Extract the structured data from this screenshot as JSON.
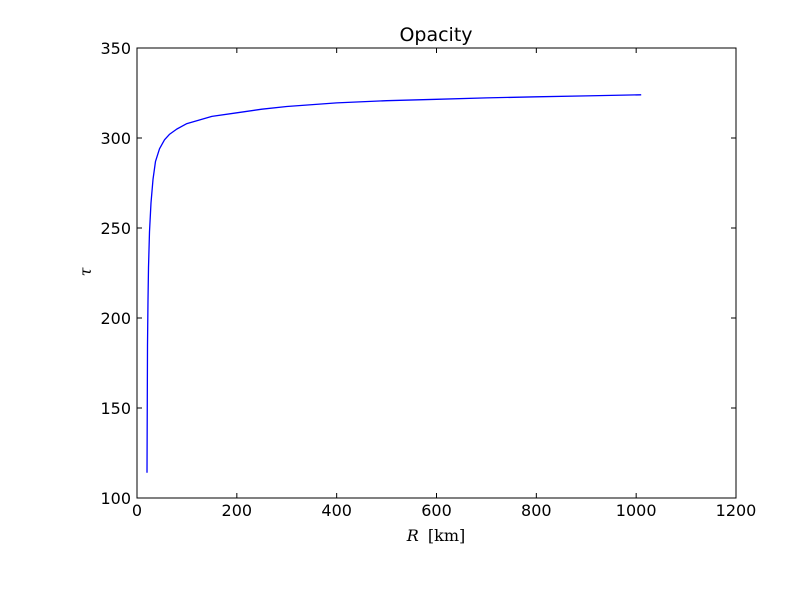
{
  "chart_data": {
    "type": "line",
    "title": "Opacity",
    "xlabel_var": "R",
    "xlabel_unit": "[km]",
    "ylabel": "τ",
    "xlim": [
      0,
      1200
    ],
    "ylim": [
      100,
      350
    ],
    "xticks": [
      0,
      200,
      400,
      600,
      800,
      1000,
      1200
    ],
    "yticks": [
      100,
      150,
      200,
      250,
      300,
      350
    ],
    "grid": false,
    "series": [
      {
        "color": "#0000ff",
        "x": [
          20,
          21,
          22,
          23,
          25,
          28,
          32,
          37,
          45,
          55,
          65,
          80,
          100,
          125,
          150,
          200,
          250,
          300,
          400,
          500,
          600,
          700,
          800,
          900,
          1010
        ],
        "y": [
          114,
          185,
          210,
          228,
          248,
          264,
          277,
          287,
          294,
          299,
          302,
          305,
          308,
          310,
          312,
          314,
          316,
          317.5,
          319.5,
          320.7,
          321.5,
          322.3,
          322.9,
          323.4,
          324
        ]
      }
    ]
  }
}
